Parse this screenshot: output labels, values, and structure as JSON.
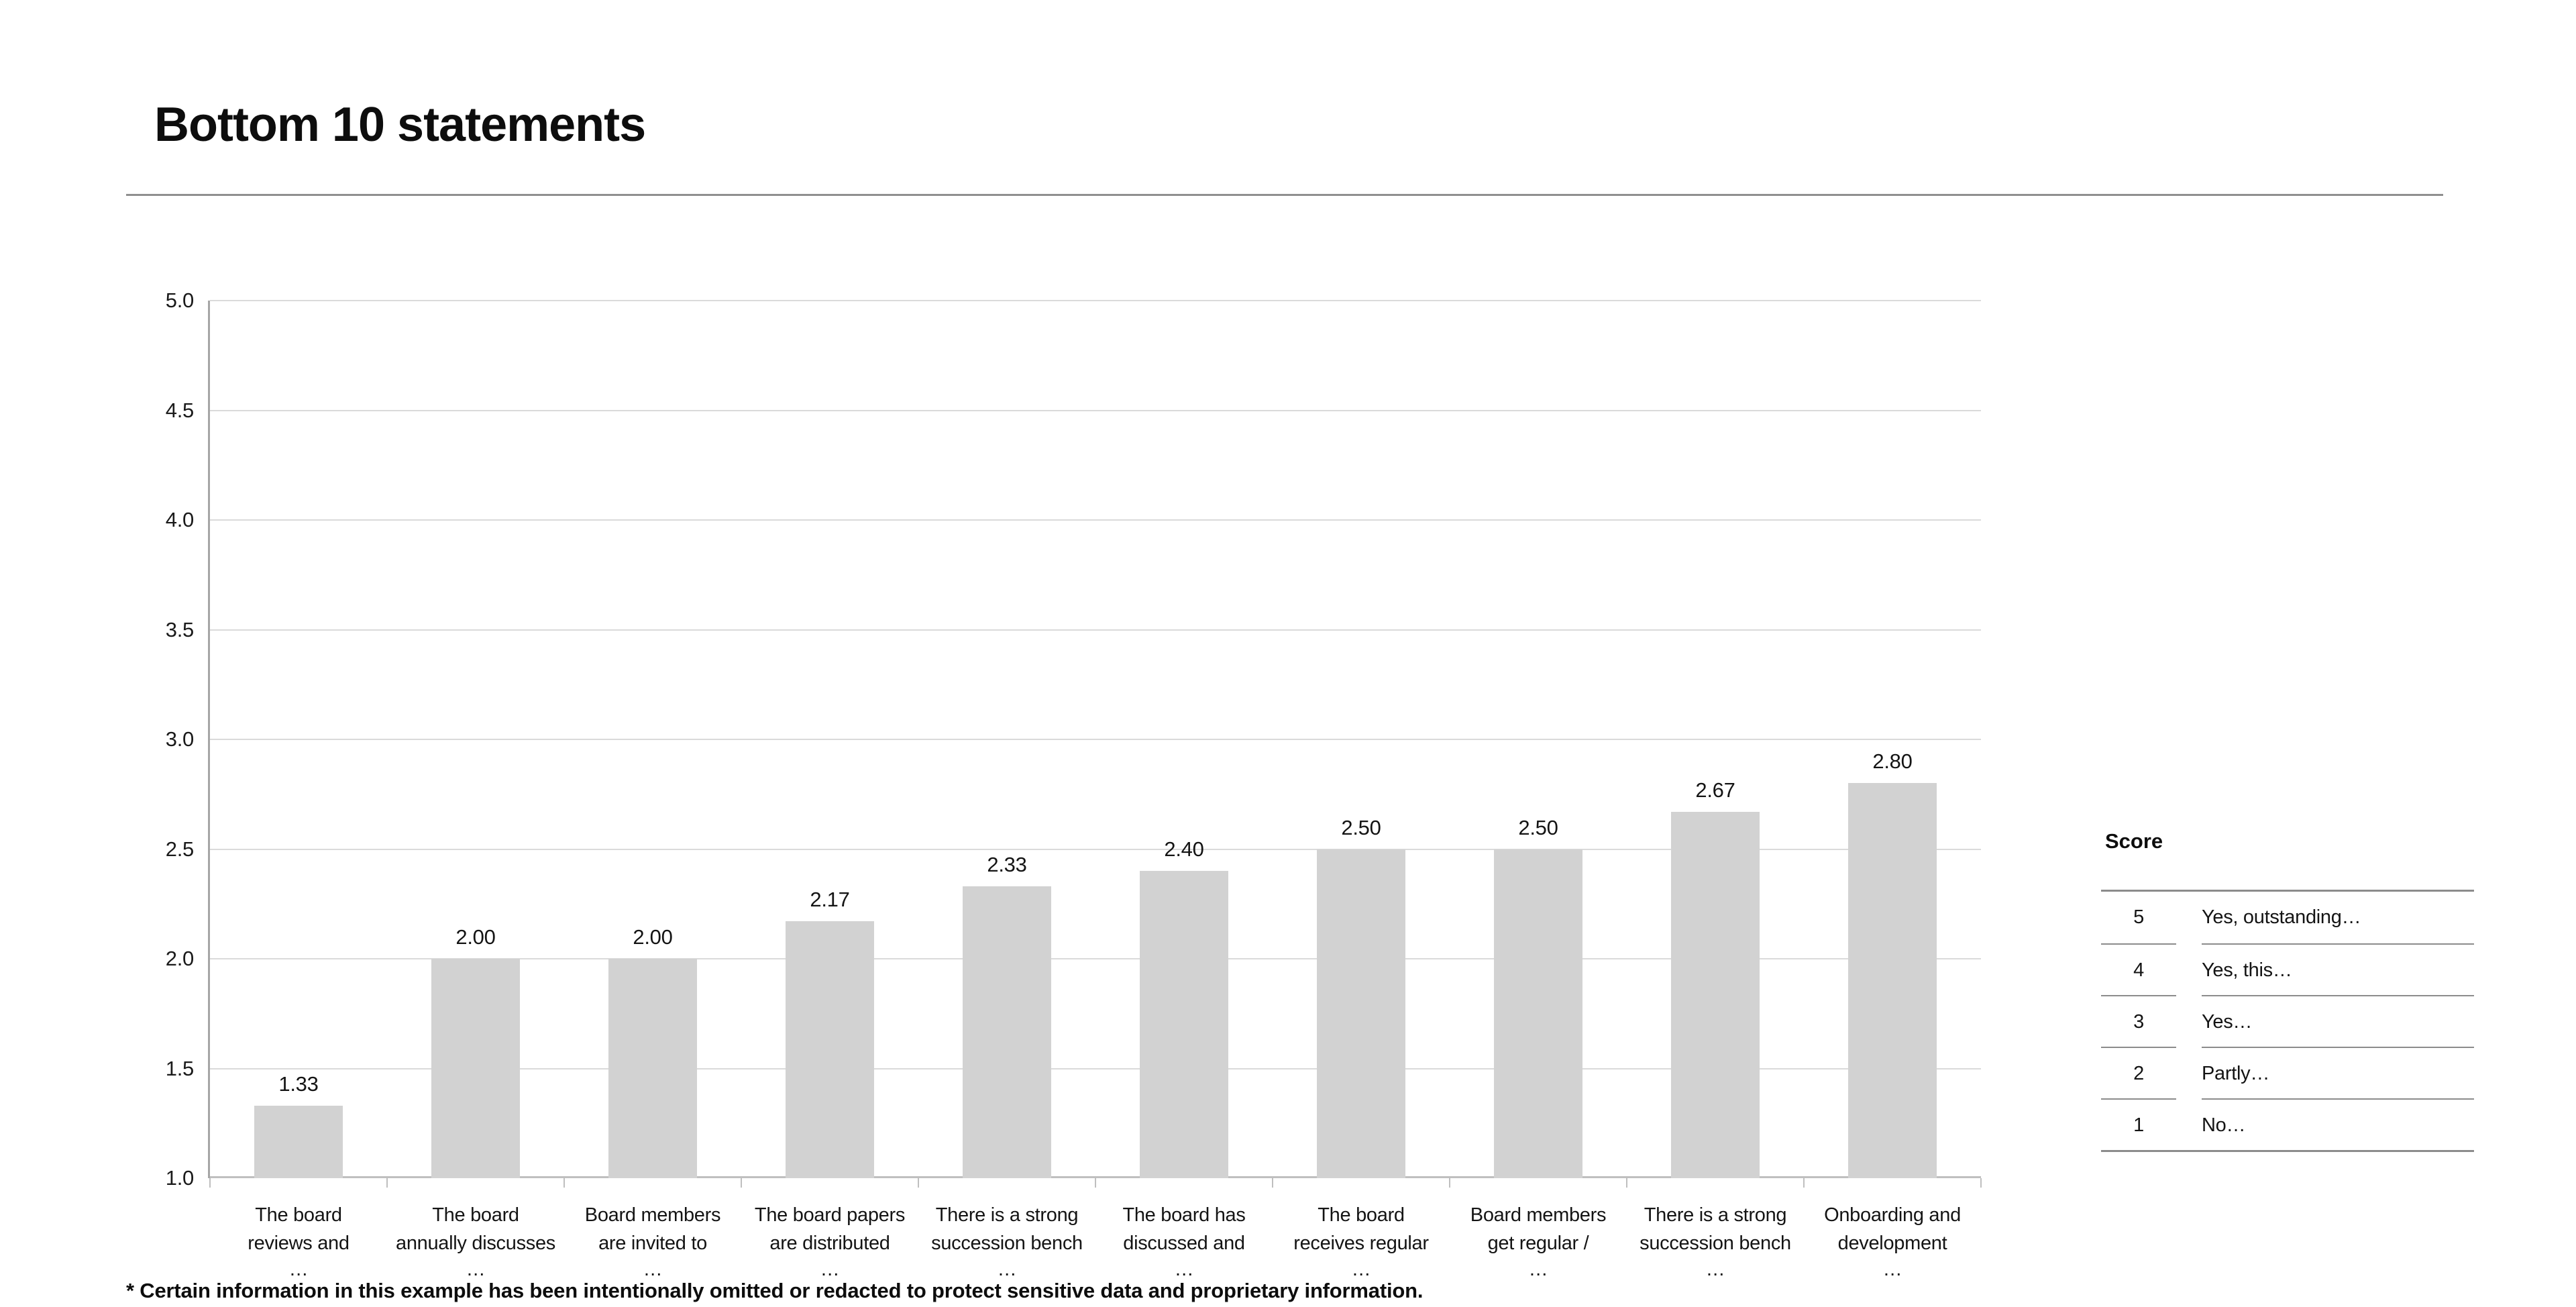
{
  "page": {
    "title": "Bottom 10 statements",
    "footnote": "* Certain information in this example has been intentionally omitted or redacted to protect sensitive data and proprietary information."
  },
  "chart_data": {
    "type": "bar",
    "title": "Bottom 10 statements",
    "ylim": [
      1.0,
      5.0
    ],
    "ytick_step": 0.5,
    "yticks": [
      "5.0",
      "4.5",
      "4.0",
      "3.5",
      "3.0",
      "2.5",
      "2.0",
      "1.5",
      "1.0"
    ],
    "grid": true,
    "legend_position": "right",
    "bar_color": "#d2d2d2",
    "categories": [
      {
        "lines": [
          "The board",
          "reviews and"
        ],
        "ellipsis": "…"
      },
      {
        "lines": [
          "The board",
          "annually discusses"
        ],
        "ellipsis": "…"
      },
      {
        "lines": [
          "Board members",
          "are invited to"
        ],
        "ellipsis": "…"
      },
      {
        "lines": [
          "The board papers",
          "are distributed"
        ],
        "ellipsis": "…"
      },
      {
        "lines": [
          "There is a strong",
          "succession bench"
        ],
        "ellipsis": "…"
      },
      {
        "lines": [
          "The board has",
          "discussed and"
        ],
        "ellipsis": "…"
      },
      {
        "lines": [
          "The board",
          "receives regular"
        ],
        "ellipsis": "…"
      },
      {
        "lines": [
          "Board members",
          "get regular /"
        ],
        "ellipsis": "…"
      },
      {
        "lines": [
          "There is a strong",
          "succession bench"
        ],
        "ellipsis": "…"
      },
      {
        "lines": [
          "Onboarding and",
          "development"
        ],
        "ellipsis": "…"
      }
    ],
    "values": [
      1.33,
      2.0,
      2.0,
      2.17,
      2.33,
      2.4,
      2.5,
      2.5,
      2.67,
      2.8
    ],
    "value_labels": [
      "1.33",
      "2.00",
      "2.00",
      "2.17",
      "2.33",
      "2.40",
      "2.50",
      "2.50",
      "2.67",
      "2.80"
    ]
  },
  "score_legend": {
    "header": "Score",
    "rows": [
      {
        "score": "5",
        "label": "Yes, outstanding…"
      },
      {
        "score": "4",
        "label": "Yes, this…"
      },
      {
        "score": "3",
        "label": "Yes…"
      },
      {
        "score": "2",
        "label": "Partly…"
      },
      {
        "score": "1",
        "label": "No…"
      }
    ]
  },
  "colors": {
    "bar": "#d2d2d2",
    "gridline": "#dadada",
    "axis_line": "#a6a6a6",
    "table_rule": "#8c8c8c",
    "text": "#111111"
  }
}
